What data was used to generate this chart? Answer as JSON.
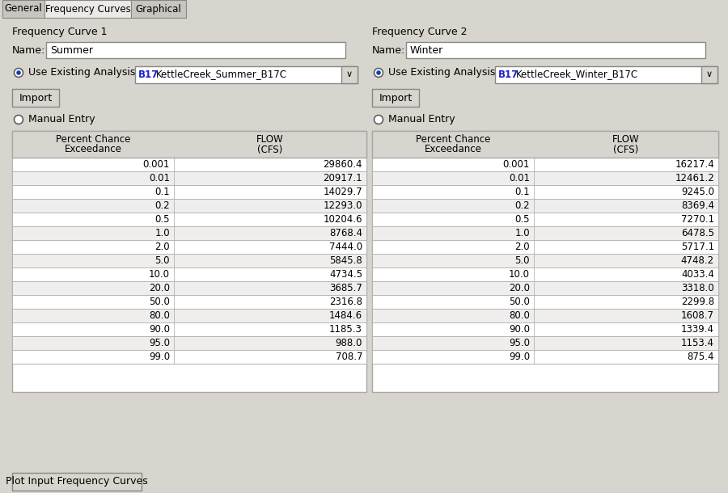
{
  "tabs": [
    "General",
    "Frequency Curves",
    "Graphical"
  ],
  "active_tab": "Frequency Curves",
  "bg_color": "#d8d5ce",
  "panel_bg": "#eceae6",
  "tab_active_bg": "#eceae6",
  "tab_inactive_bg": "#c8c5be",
  "white": "#ffffff",
  "border_color": "#888888",
  "curve1_label": "Frequency Curve 1",
  "curve2_label": "Frequency Curve 2",
  "name1_value": "Summer",
  "name2_value": "Winter",
  "radio1_label": "Use Existing Analysis",
  "dropdown1_text": "B17 KettleCreek_Summer_B17C",
  "radio2_label": "Use Existing Analysis",
  "dropdown2_text": "B17 KettleCreek_Winter_B17C",
  "import_btn": "Import",
  "manual_entry": "Manual Entry",
  "col1_header1": "Percent Chance",
  "col1_header2": "Exceedance",
  "col2_header1": "FLOW",
  "col2_header2": "(CFS)",
  "plot_btn": "Plot Input Frequency Curves",
  "summer_pct": [
    "0.001",
    "0.01",
    "0.1",
    "0.2",
    "0.5",
    "1.0",
    "2.0",
    "5.0",
    "10.0",
    "20.0",
    "50.0",
    "80.0",
    "90.0",
    "95.0",
    "99.0"
  ],
  "summer_flow": [
    "29860.4",
    "20917.1",
    "14029.7",
    "12293.0",
    "10204.6",
    "8768.4",
    "7444.0",
    "5845.8",
    "4734.5",
    "3685.7",
    "2316.8",
    "1484.6",
    "1185.3",
    "988.0",
    "708.7"
  ],
  "winter_pct": [
    "0.001",
    "0.01",
    "0.1",
    "0.2",
    "0.5",
    "1.0",
    "2.0",
    "5.0",
    "10.0",
    "20.0",
    "50.0",
    "80.0",
    "90.0",
    "95.0",
    "99.0"
  ],
  "winter_flow": [
    "16217.4",
    "12461.2",
    "9245.0",
    "8369.4",
    "7270.1",
    "6478.5",
    "5717.1",
    "4748.2",
    "4033.4",
    "3318.0",
    "2299.8",
    "1608.7",
    "1339.4",
    "1153.4",
    "875.4"
  ],
  "header_bg": "#d8d5ce",
  "row_alt": "#f0eeec",
  "table_border": "#a8a8a8",
  "b17_color": "#2020cc"
}
